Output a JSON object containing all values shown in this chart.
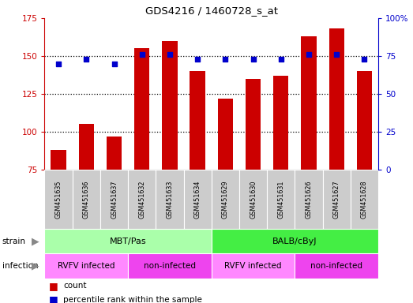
{
  "title": "GDS4216 / 1460728_s_at",
  "samples": [
    "GSM451635",
    "GSM451636",
    "GSM451637",
    "GSM451632",
    "GSM451633",
    "GSM451634",
    "GSM451629",
    "GSM451630",
    "GSM451631",
    "GSM451626",
    "GSM451627",
    "GSM451628"
  ],
  "counts": [
    88,
    105,
    97,
    155,
    160,
    140,
    122,
    135,
    137,
    163,
    168,
    140
  ],
  "percentiles": [
    70,
    73,
    70,
    76,
    76,
    73,
    73,
    73,
    73,
    76,
    76,
    73
  ],
  "ylim_left": [
    75,
    175
  ],
  "ylim_right": [
    0,
    100
  ],
  "yticks_left": [
    75,
    100,
    125,
    150,
    175
  ],
  "yticks_right": [
    0,
    25,
    50,
    75,
    100
  ],
  "bar_color": "#cc0000",
  "dot_color": "#0000cc",
  "strain_labels": [
    "MBT/Pas",
    "BALB/cByJ"
  ],
  "strain_color1": "#aaffaa",
  "strain_color2": "#44ee44",
  "infection_labels": [
    "RVFV infected",
    "non-infected",
    "RVFV infected",
    "non-infected"
  ],
  "infection_color1": "#ff88ff",
  "infection_color2": "#ee44ee",
  "legend_count_label": "count",
  "legend_pct_label": "percentile rank within the sample",
  "bar_color_legend": "#cc0000",
  "dot_color_legend": "#0000cc",
  "tick_left_color": "#cc0000",
  "tick_right_color": "#0000cc",
  "xtick_bg_color": "#cccccc",
  "grid_dotted_color": "#000000"
}
